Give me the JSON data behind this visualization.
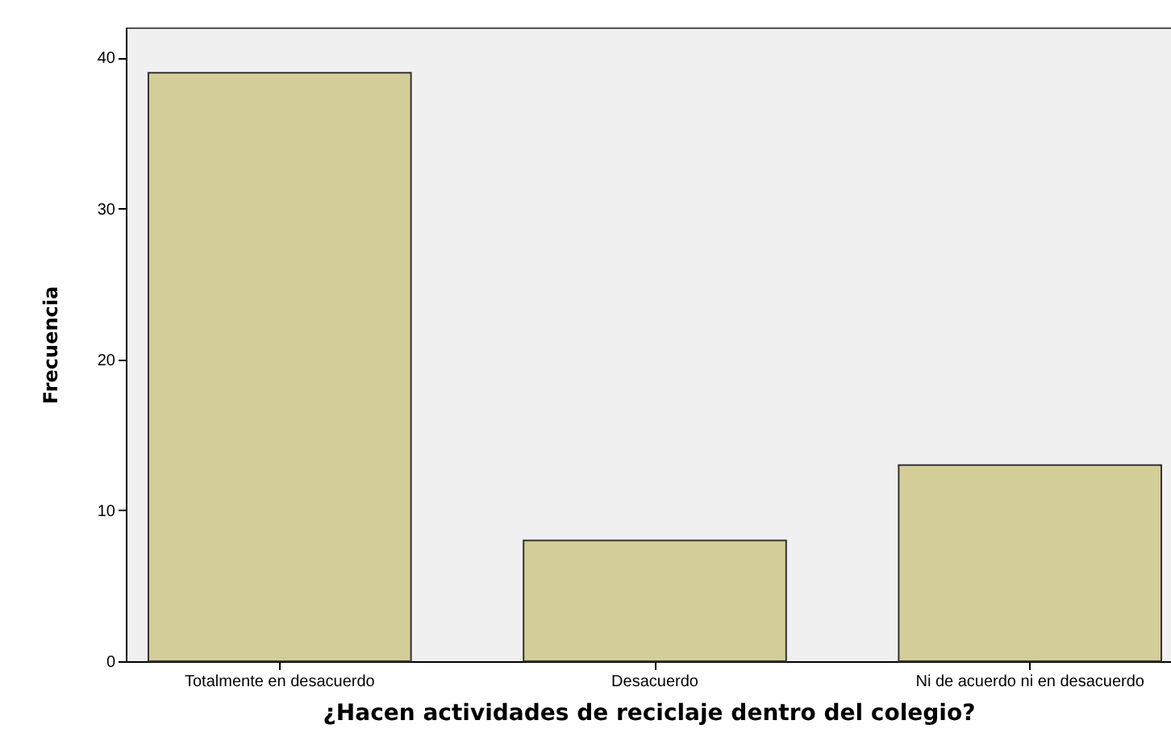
{
  "chart_data": {
    "type": "bar",
    "xlabel": "¿Hacen actividades de reciclaje dentro del colegio?",
    "ylabel": "Frecuencia",
    "categories": [
      "Totalmente en desacuerdo",
      "Desacuerdo",
      "Ni de acuerdo ni en desacuerdo"
    ],
    "values": [
      39,
      8,
      13
    ],
    "color": "#d3ce97",
    "ylim": [
      0,
      42
    ],
    "yticks": [
      0,
      10,
      20,
      30,
      40
    ],
    "grid": false
  }
}
